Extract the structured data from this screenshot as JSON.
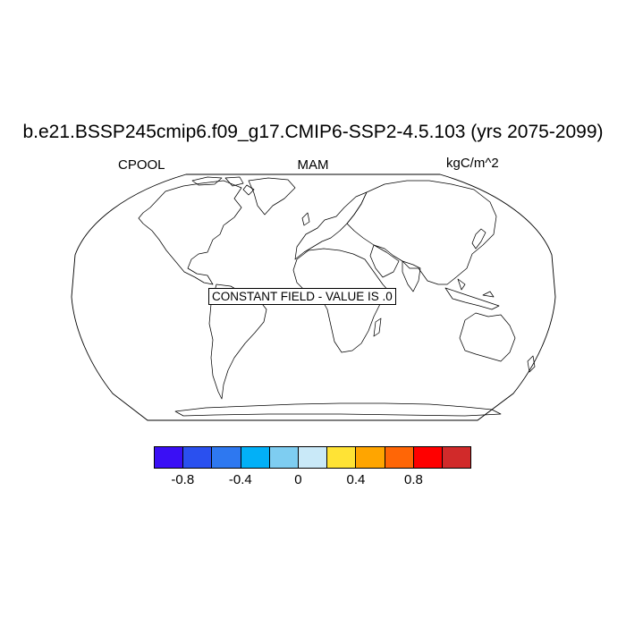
{
  "title": "b.e21.BSSP245cmip6.f09_g17.CMIP6-SSP2-4.5.103 (yrs 2075-2099)",
  "left_string": "CPOOL",
  "center_string": "MAM",
  "right_string": "kgC/m^2",
  "map": {
    "projection": "Robinson",
    "field_message": "CONSTANT FIELD - VALUE IS .0",
    "constant_value": 0
  },
  "colorbar": {
    "colors": [
      "#3a0ff5",
      "#2a50ef",
      "#2e78f0",
      "#02b0f7",
      "#7ecdf1",
      "#c9e9f8",
      "#ffe335",
      "#ffa500",
      "#ff6606",
      "#ff0000",
      "#d12a2a"
    ],
    "tick_labels": [
      "-0.8",
      "-0.4",
      "0",
      "0.4",
      "0.8"
    ],
    "levels": [
      -1.0,
      -0.8,
      -0.6,
      -0.4,
      -0.2,
      0,
      0.2,
      0.4,
      0.6,
      0.8,
      1.0
    ]
  }
}
